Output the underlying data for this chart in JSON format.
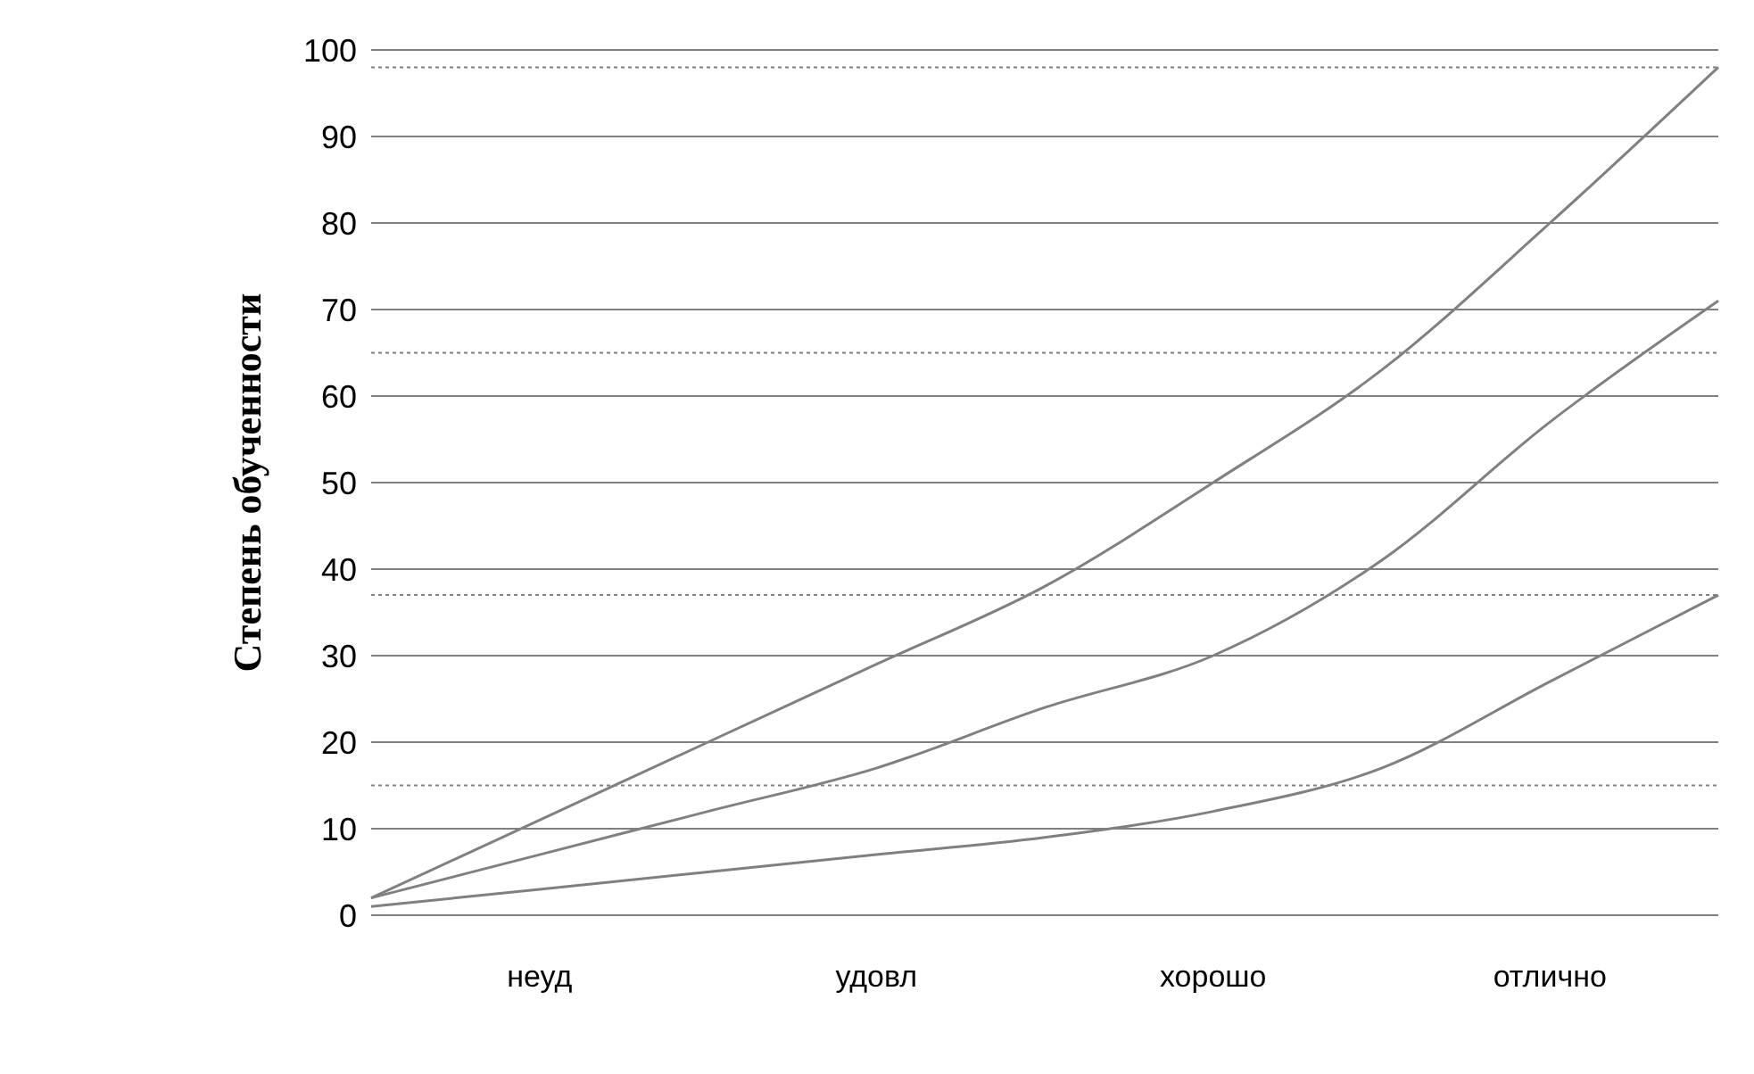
{
  "chart_data": {
    "type": "line",
    "ylabel": "Степень обученности",
    "categories": [
      null,
      "неуд",
      null,
      "удовл",
      null,
      "хорошо",
      null,
      "отлично",
      null
    ],
    "ylim": [
      0,
      100
    ],
    "yticks": [
      0,
      10,
      20,
      30,
      40,
      50,
      60,
      70,
      80,
      90,
      100
    ],
    "series": [
      {
        "color": "#808080",
        "values": [
          2,
          11,
          20,
          29,
          38,
          50,
          63,
          80,
          98
        ]
      },
      {
        "color": "#808080",
        "values": [
          2,
          7,
          12,
          17,
          24,
          30,
          41,
          57,
          71
        ]
      },
      {
        "color": "#808080",
        "values": [
          1,
          3,
          5,
          7,
          9,
          12,
          17,
          27,
          37
        ]
      }
    ],
    "ref_lines": [
      {
        "axis": "y",
        "value": 15,
        "color": "#808080",
        "line_style": "dotted"
      },
      {
        "axis": "y",
        "value": 37,
        "color": "#808080",
        "line_style": "dotted"
      },
      {
        "axis": "y",
        "value": 65,
        "color": "#808080",
        "line_style": "dotted"
      },
      {
        "axis": "y",
        "value": 98,
        "color": "#808080",
        "line_style": "dotted"
      }
    ],
    "grid": "y",
    "legend": false,
    "marker": "none",
    "line_style": "solid"
  }
}
